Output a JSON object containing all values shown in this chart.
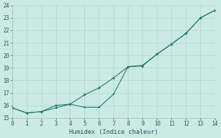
{
  "line1_x": [
    0,
    1,
    2,
    3,
    4,
    5,
    6,
    7,
    8,
    9,
    10,
    11,
    12,
    13,
    14
  ],
  "line1_y": [
    15.8,
    15.4,
    15.5,
    16.0,
    16.1,
    16.85,
    17.4,
    18.2,
    19.1,
    19.15,
    20.1,
    20.9,
    21.75,
    23.0,
    23.6
  ],
  "line2_x": [
    0,
    1,
    2,
    3,
    4,
    5,
    6,
    7,
    8,
    9,
    10,
    11,
    12,
    13,
    14
  ],
  "line2_y": [
    15.8,
    15.4,
    15.5,
    15.8,
    16.1,
    15.85,
    15.85,
    16.9,
    19.1,
    19.2,
    20.1,
    20.9,
    21.75,
    23.0,
    23.6
  ],
  "line_color": "#1a7a6e",
  "bg_color": "#cceae4",
  "grid_color": "#b0d4ce",
  "xlabel": "Humidex (Indice chaleur)",
  "ylim": [
    15,
    24
  ],
  "xlim": [
    0,
    14
  ],
  "yticks": [
    15,
    16,
    17,
    18,
    19,
    20,
    21,
    22,
    23,
    24
  ],
  "xticks": [
    0,
    1,
    2,
    3,
    4,
    5,
    6,
    7,
    8,
    9,
    10,
    11,
    12,
    13,
    14
  ]
}
